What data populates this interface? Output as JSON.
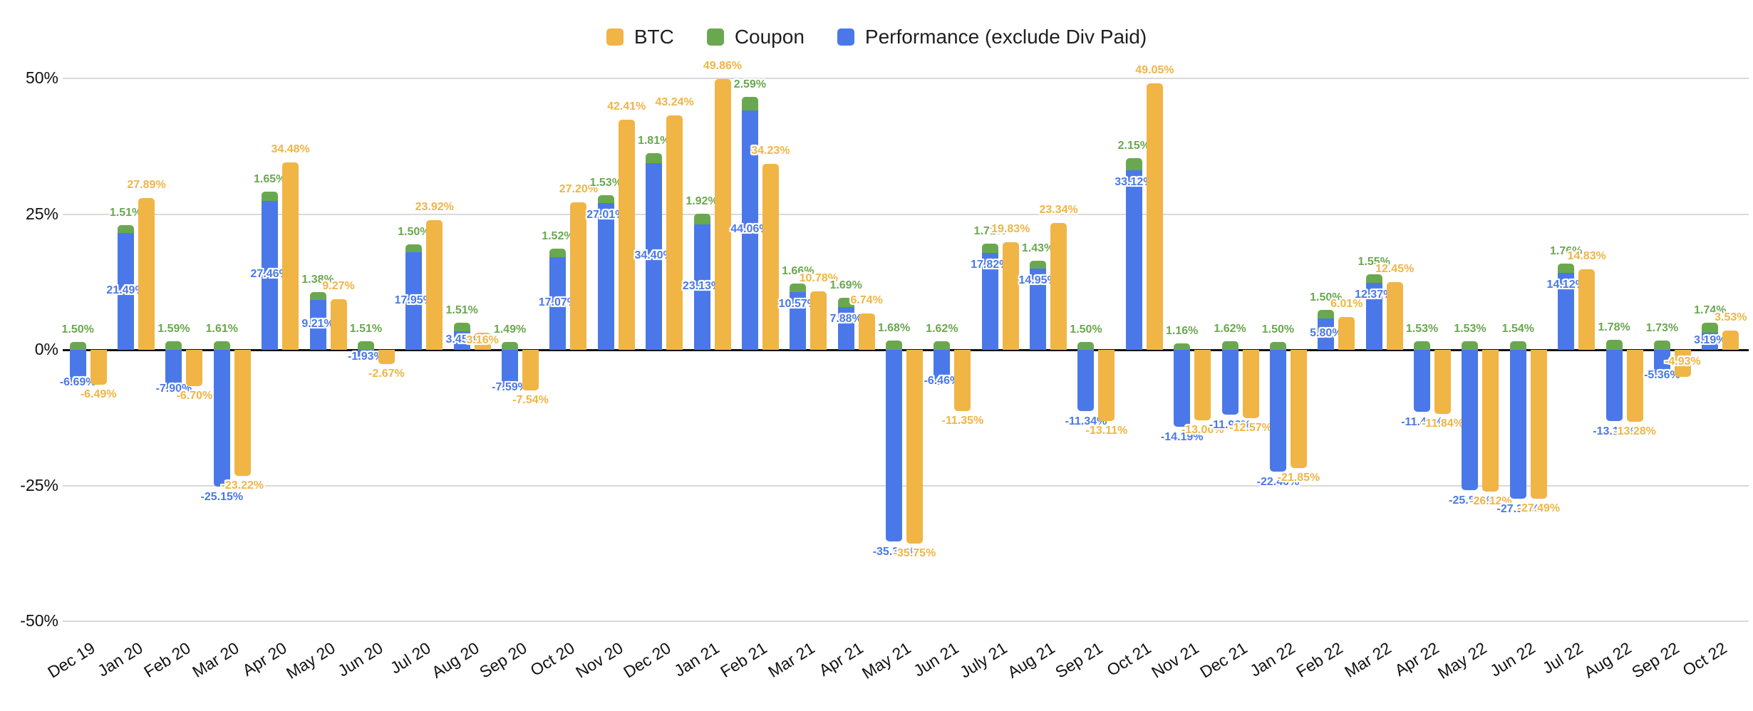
{
  "chart": {
    "legend": [
      {
        "label": "BTC",
        "color": "#F0B545"
      },
      {
        "label": "Coupon",
        "color": "#6AA84F"
      },
      {
        "label": "Performance (exclude Div Paid)",
        "color": "#4A78E8"
      }
    ],
    "y_ticks": [
      "50%",
      "25%",
      "0%",
      "-25%",
      "-50%"
    ]
  },
  "chart_data": {
    "type": "bar",
    "title": "",
    "categories": [
      "Dec 19",
      "Jan 20",
      "Feb 20",
      "Mar 20",
      "Apr 20",
      "May 20",
      "Jun 20",
      "Jul 20",
      "Aug 20",
      "Sep 20",
      "Oct 20",
      "Nov 20",
      "Dec 20",
      "Jan 21",
      "Feb 21",
      "Mar 21",
      "Apr 21",
      "May 21",
      "Jun 21",
      "July 21",
      "Aug 21",
      "Sep 21",
      "Oct 21",
      "Nov 21",
      "Dec 21",
      "Jan 22",
      "Feb 22",
      "Mar 22",
      "Apr 22",
      "May 22",
      "Jun 22",
      "Jul 22",
      "Aug 22",
      "Sep 22",
      "Oct 22"
    ],
    "series": [
      {
        "name": "BTC",
        "color": "#F0B545",
        "values": [
          -6.49,
          27.89,
          -6.7,
          -23.22,
          34.48,
          9.27,
          -2.67,
          23.92,
          3.16,
          -7.54,
          27.2,
          42.41,
          43.24,
          49.86,
          34.23,
          10.78,
          6.74,
          -35.75,
          -11.35,
          19.83,
          23.34,
          -13.11,
          49.05,
          -13.0,
          -12.57,
          -21.85,
          6.01,
          12.45,
          -11.84,
          -26.12,
          -27.49,
          14.83,
          -13.28,
          -4.93,
          3.53
        ]
      },
      {
        "name": "Coupon",
        "color": "#6AA84F",
        "values": [
          1.5,
          1.51,
          1.59,
          1.61,
          1.65,
          1.38,
          1.51,
          1.5,
          1.51,
          1.49,
          1.52,
          1.53,
          1.81,
          1.92,
          2.59,
          1.66,
          1.69,
          1.68,
          1.62,
          1.71,
          1.43,
          1.5,
          2.15,
          1.16,
          1.62,
          1.5,
          1.5,
          1.55,
          1.53,
          1.53,
          1.54,
          1.76,
          1.78,
          1.73,
          1.74
        ]
      },
      {
        "name": "Performance (exclude Div Paid)",
        "color": "#4A78E8",
        "values": [
          -6.69,
          21.49,
          -7.9,
          -25.15,
          27.46,
          9.21,
          -1.93,
          17.95,
          3.45,
          -7.59,
          17.07,
          27.01,
          34.4,
          23.13,
          44.06,
          10.57,
          7.88,
          -35.35,
          -6.46,
          17.82,
          14.95,
          -11.34,
          33.12,
          -14.19,
          -11.92,
          -22.4,
          5.8,
          12.37,
          -11.42,
          -25.83,
          -27.38,
          14.12,
          -13.13,
          -5.36,
          3.19
        ]
      }
    ],
    "ylim": [
      -50,
      50
    ],
    "y_tick_step": 25,
    "grid": true,
    "legend_position": "top",
    "label_format": "0.00%",
    "stacking": "Performance and Coupon are stacked in one column; BTC is a separate column per month"
  }
}
